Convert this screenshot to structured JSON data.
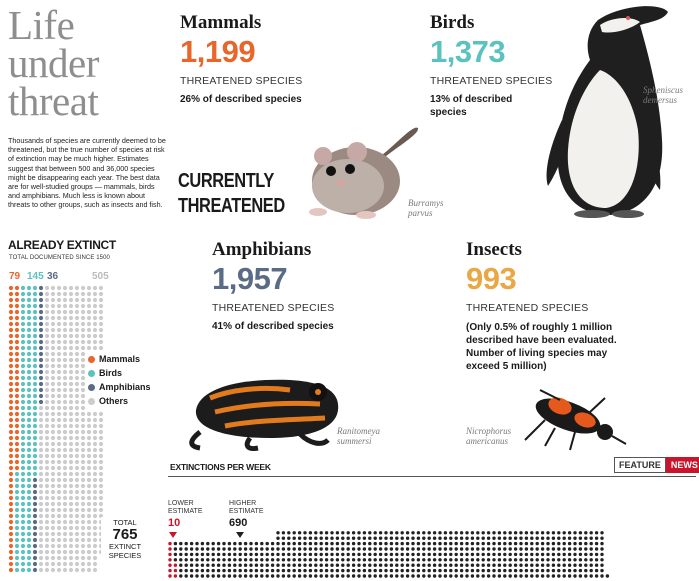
{
  "title_lines": [
    "Life",
    "under",
    "threat"
  ],
  "intro": "Thousands of species are currently deemed to be threatened, but the true number of species at risk of extinction may be much higher. Estimates suggest that between 500 and 36,000 species might be disappearing each year. The best data are for well-studied groups — mammals, birds and amphibians. Much less is known about threats to other groups, such as insects and fish.",
  "currently_threatened": [
    "CURRENTLY",
    "THREATENED"
  ],
  "species": [
    {
      "name": "Mammals",
      "count": "1,199",
      "label": "THREATENED SPECIES",
      "note": "26% of described species",
      "color": "#e8662a",
      "latin": [
        "Burramys",
        "parvus"
      ]
    },
    {
      "name": "Birds",
      "count": "1,373",
      "label": "THREATENED SPECIES",
      "note": "13% of described species",
      "color": "#5bc2c0",
      "latin": [
        "Spheniscus",
        "demersus"
      ]
    },
    {
      "name": "Amphibians",
      "count": "1,957",
      "label": "THREATENED SPECIES",
      "note": "41% of described species",
      "color": "#5a6b86",
      "latin": [
        "Ranitomeya",
        "summersi"
      ]
    },
    {
      "name": "Insects",
      "count": "993",
      "label": "THREATENED SPECIES",
      "note": "(Only 0.5% of roughly 1 million described have been evaluated. Number of living species may exceed 5 million)",
      "color": "#e9a845",
      "latin": [
        "Nicrophorus",
        "americanus"
      ]
    }
  ],
  "extinct": {
    "heading": "ALREADY EXTINCT",
    "subheading": "TOTAL DOCUMENTED SINCE 1500",
    "total_label": "TOTAL",
    "total_value": "765",
    "total_sub": [
      "EXTINCT",
      "SPECIES"
    ],
    "legend": [
      "Mammals",
      "Birds",
      "Amphibians",
      "Others"
    ]
  },
  "chart_data": [
    {
      "type": "waffle",
      "title": "ALREADY EXTINCT",
      "subtitle": "TOTAL DOCUMENTED SINCE 1500",
      "categories": [
        "Mammals",
        "Birds",
        "Amphibians",
        "Others"
      ],
      "values": [
        79,
        145,
        36,
        505
      ],
      "value_labels": [
        "79",
        "145",
        "36",
        "505"
      ],
      "total": 765,
      "colors": [
        "#e8662a",
        "#5bc2c0",
        "#5a6b86",
        "#cccccc"
      ],
      "legend": "right"
    },
    {
      "type": "waffle",
      "title": "EXTINCTIONS PER WEEK",
      "categories": [
        "LOWER ESTIMATE",
        "HIGHER ESTIMATE"
      ],
      "values": [
        10,
        690
      ],
      "value_labels": [
        "10",
        "690"
      ],
      "colors": [
        "#c9142c",
        "#222222"
      ]
    }
  ],
  "weekly": {
    "heading": "EXTINCTIONS PER WEEK",
    "lower_label": [
      "LOWER",
      "ESTIMATE"
    ],
    "lower_value": "10",
    "higher_label": [
      "HIGHER",
      "ESTIMATE"
    ],
    "higher_value": "690"
  },
  "badge": {
    "feature": "FEATURE",
    "news": "NEWS"
  },
  "colors": {
    "news_red": "#c9142c",
    "grey_dot": "#cccccc",
    "dark_dot": "#222222"
  }
}
